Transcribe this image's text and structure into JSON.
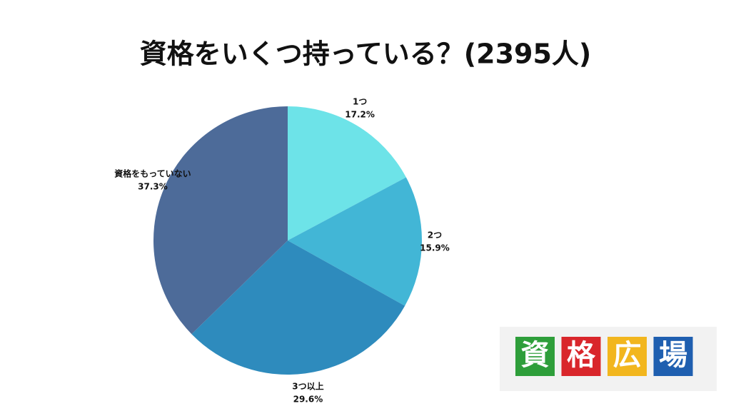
{
  "chart_data": {
    "type": "pie",
    "title": "資格をいくつ持っている？(2395人)",
    "categories": [
      "1つ",
      "2つ",
      "3つ以上",
      "資格をもっていない"
    ],
    "values": [
      17.2,
      15.9,
      29.6,
      37.3
    ],
    "value_labels": [
      "17.2%",
      "15.9%",
      "29.6%",
      "37.3%"
    ],
    "colors": [
      "#6de3e8",
      "#42b6d6",
      "#2e8bbd",
      "#4d6b99"
    ]
  },
  "logo": {
    "chars": [
      "資",
      "格",
      "広",
      "場"
    ],
    "colors": [
      "#2e9e3a",
      "#d9262b",
      "#f2b61e",
      "#1f5fb0"
    ]
  }
}
